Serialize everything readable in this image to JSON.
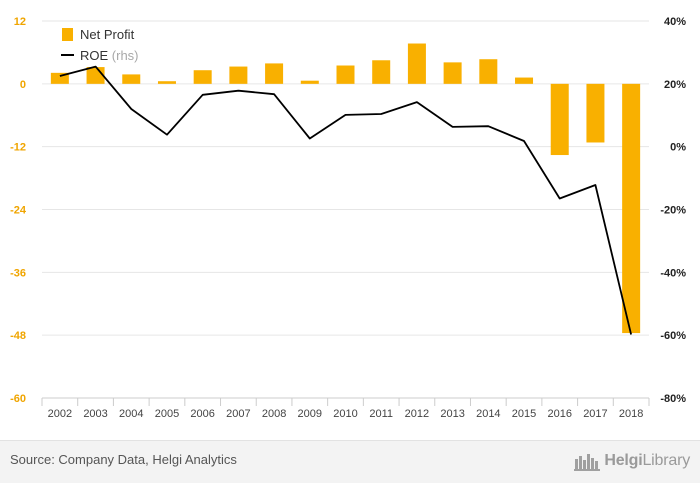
{
  "chart_data": {
    "type": "bar+line",
    "categories": [
      "2002",
      "2003",
      "2004",
      "2005",
      "2006",
      "2007",
      "2008",
      "2009",
      "2010",
      "2011",
      "2012",
      "2013",
      "2014",
      "2015",
      "2016",
      "2017",
      "2018"
    ],
    "series": [
      {
        "name": "Net Profit",
        "type": "bar",
        "axis": "left",
        "color": "#f9b000",
        "values": [
          2.1,
          3.2,
          1.8,
          0.5,
          2.6,
          3.3,
          3.9,
          0.6,
          3.5,
          4.5,
          7.7,
          4.1,
          4.7,
          1.2,
          -13.6,
          -11.2,
          -47.6
        ]
      },
      {
        "name": "ROE",
        "name_suffix": "(rhs)",
        "type": "line",
        "axis": "right",
        "color": "#000000",
        "values": [
          22.5,
          25.5,
          12.0,
          3.8,
          16.5,
          17.8,
          16.7,
          2.6,
          10.1,
          10.4,
          14.2,
          6.3,
          6.5,
          1.8,
          -16.5,
          -12.2,
          -59.8
        ]
      }
    ],
    "y_left": {
      "min": -60,
      "max": 12,
      "ticks": [
        "12",
        "0",
        "-12",
        "-24",
        "-36",
        "-48",
        "-60"
      ],
      "tick_values": [
        12,
        0,
        -12,
        -24,
        -36,
        -48,
        -60
      ]
    },
    "y_right": {
      "min": -80,
      "max": 40,
      "ticks": [
        "40%",
        "20%",
        "0%",
        "-20%",
        "-40%",
        "-60%",
        "-80%"
      ],
      "tick_values": [
        40,
        20,
        0,
        -20,
        -40,
        -60,
        -80
      ]
    },
    "grid": true,
    "legend": "top-left",
    "left_tick_color": "#f0a500",
    "right_tick_color": "#222222"
  },
  "footer": {
    "source": "Source: Company Data, Helgi Analytics",
    "brand_bold": "Helgi",
    "brand_thin": "Library"
  }
}
